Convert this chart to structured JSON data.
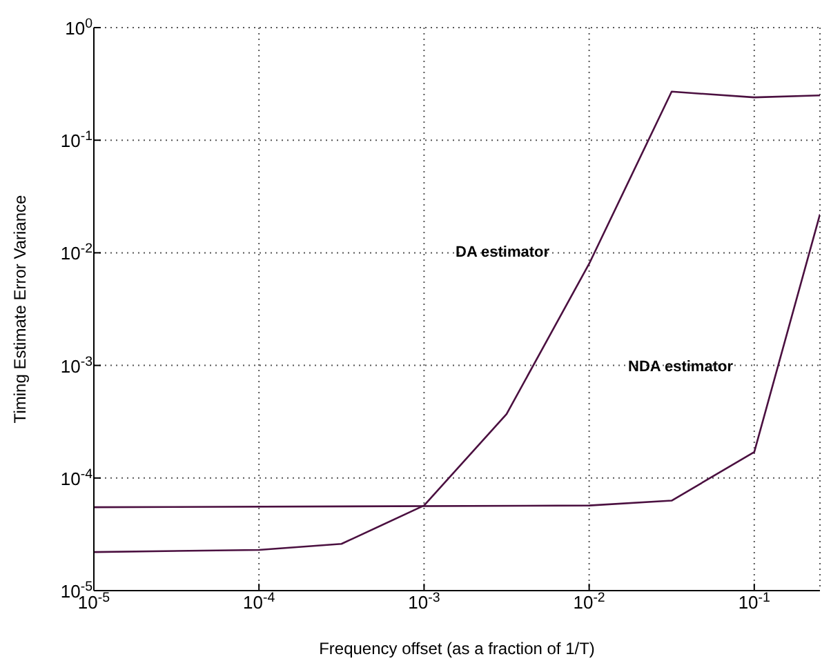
{
  "chart_data": {
    "type": "line",
    "xlabel": "Frequency offset (as a fraction of 1/T)",
    "ylabel": "Timing Estimate Error Variance",
    "log": "xy",
    "grid": true,
    "marker": "none",
    "line_style": "solid",
    "xlim": [
      1e-05,
      0.25
    ],
    "ylim": [
      1e-05,
      1
    ],
    "xticks": [
      {
        "value": 1e-05,
        "label": "10$^{-5}$"
      },
      {
        "value": 0.0001,
        "label": "10$^{-4}$"
      },
      {
        "value": 0.001,
        "label": "10$^{-3}$"
      },
      {
        "value": 0.01,
        "label": "10$^{-2}$"
      },
      {
        "value": 0.1,
        "label": "10$^{-1}$"
      }
    ],
    "yticks": [
      {
        "value": 1e-05,
        "label": "10$^{-5}$"
      },
      {
        "value": 0.0001,
        "label": "10$^{-4}$"
      },
      {
        "value": 0.001,
        "label": "10$^{-3}$"
      },
      {
        "value": 0.01,
        "label": "10$^{-2}$"
      },
      {
        "value": 0.1,
        "label": "10$^{-1}$"
      },
      {
        "value": 1,
        "label": "10$^{0}$"
      }
    ],
    "series": [
      {
        "color": "#4b1040",
        "x": [
          1e-05,
          0.0001,
          0.000316,
          0.001,
          0.00316,
          0.01,
          0.0316,
          0.1,
          0.25
        ],
        "values": [
          2.2e-05,
          2.3e-05,
          2.6e-05,
          5.7e-05,
          0.00037,
          0.008,
          0.27,
          0.24,
          0.25
        ]
      },
      {
        "color": "#4b1040",
        "x": [
          1e-05,
          0.01,
          0.0316,
          0.1,
          0.25
        ],
        "values": [
          5.5e-05,
          5.7e-05,
          6.3e-05,
          0.00017,
          0.022
        ]
      }
    ],
    "annotations": [
      "DA estimator",
      "NDA estimator"
    ]
  }
}
